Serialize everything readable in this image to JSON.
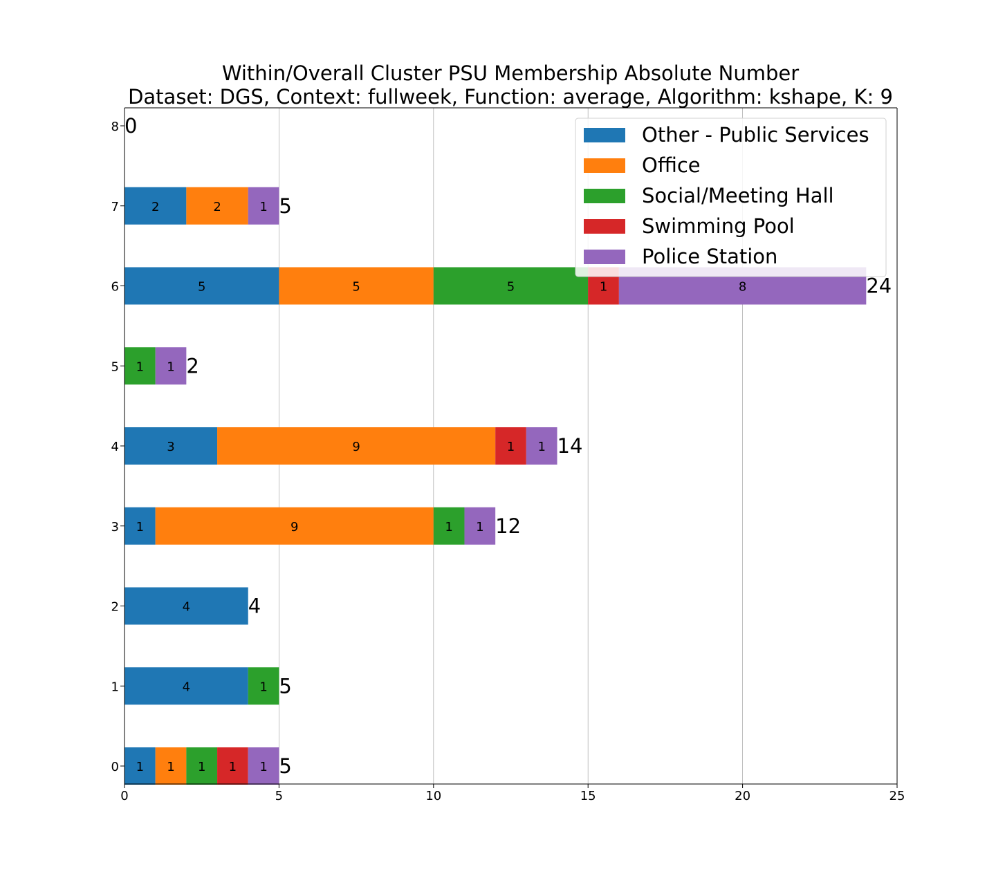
{
  "chart_data": {
    "type": "bar",
    "orientation": "horizontal",
    "stacked": true,
    "title": [
      "Within/Overall Cluster PSU Membership Absolute Number",
      "Dataset: DGS, Context: fullweek, Function: average, Algorithm: kshape, K: 9"
    ],
    "xlabel": "",
    "ylabel": "",
    "xlim": [
      0,
      25
    ],
    "x_ticks": [
      "0",
      "5",
      "10",
      "15",
      "20",
      "25"
    ],
    "categories": [
      "0",
      "1",
      "2",
      "3",
      "4",
      "5",
      "6",
      "7",
      "8"
    ],
    "grid": "vertical",
    "legend_position": "top-right",
    "series": [
      {
        "name": "Other - Public Services",
        "color": "#1f77b4",
        "values": [
          1,
          4,
          4,
          1,
          3,
          0,
          5,
          2,
          0
        ]
      },
      {
        "name": "Office",
        "color": "#ff7f0e",
        "values": [
          1,
          0,
          0,
          9,
          9,
          0,
          5,
          2,
          0
        ]
      },
      {
        "name": "Social/Meeting Hall",
        "color": "#2ca02c",
        "values": [
          1,
          1,
          0,
          1,
          0,
          1,
          5,
          0,
          0
        ]
      },
      {
        "name": "Swimming Pool",
        "color": "#d62728",
        "values": [
          1,
          0,
          0,
          0,
          1,
          0,
          1,
          0,
          0
        ]
      },
      {
        "name": "Police Station",
        "color": "#9467bd",
        "values": [
          1,
          0,
          0,
          1,
          1,
          1,
          8,
          1,
          0
        ]
      }
    ],
    "totals": [
      5,
      5,
      4,
      12,
      14,
      2,
      24,
      5,
      0
    ]
  }
}
